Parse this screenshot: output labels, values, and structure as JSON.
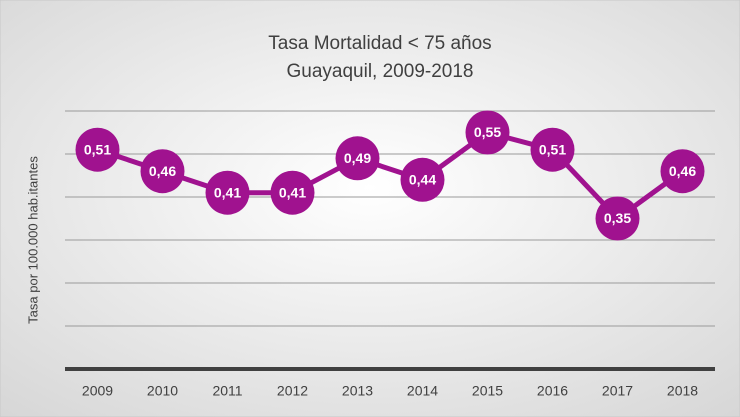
{
  "chart_data": {
    "type": "line",
    "title": "Tasa Mortalidad < 75 años",
    "subtitle": "Guayaquil, 2009-2018",
    "y_label": "Tasa por 100.000 hab.itantes",
    "categories": [
      "2009",
      "2010",
      "2011",
      "2012",
      "2013",
      "2014",
      "2015",
      "2016",
      "2017",
      "2018"
    ],
    "values": [
      0.51,
      0.46,
      0.41,
      0.41,
      0.49,
      0.44,
      0.55,
      0.51,
      0.35,
      0.46
    ],
    "value_labels": [
      "0,51",
      "0,46",
      "0,41",
      "0,41",
      "0,49",
      "0,44",
      "0,55",
      "0,51",
      "0,35",
      "0,46"
    ],
    "color": "#a0128f",
    "ylim": [
      0,
      0.6
    ],
    "yticks": [
      0,
      0.1,
      0.2,
      0.3,
      0.4,
      0.5,
      0.6
    ],
    "grid": true
  }
}
